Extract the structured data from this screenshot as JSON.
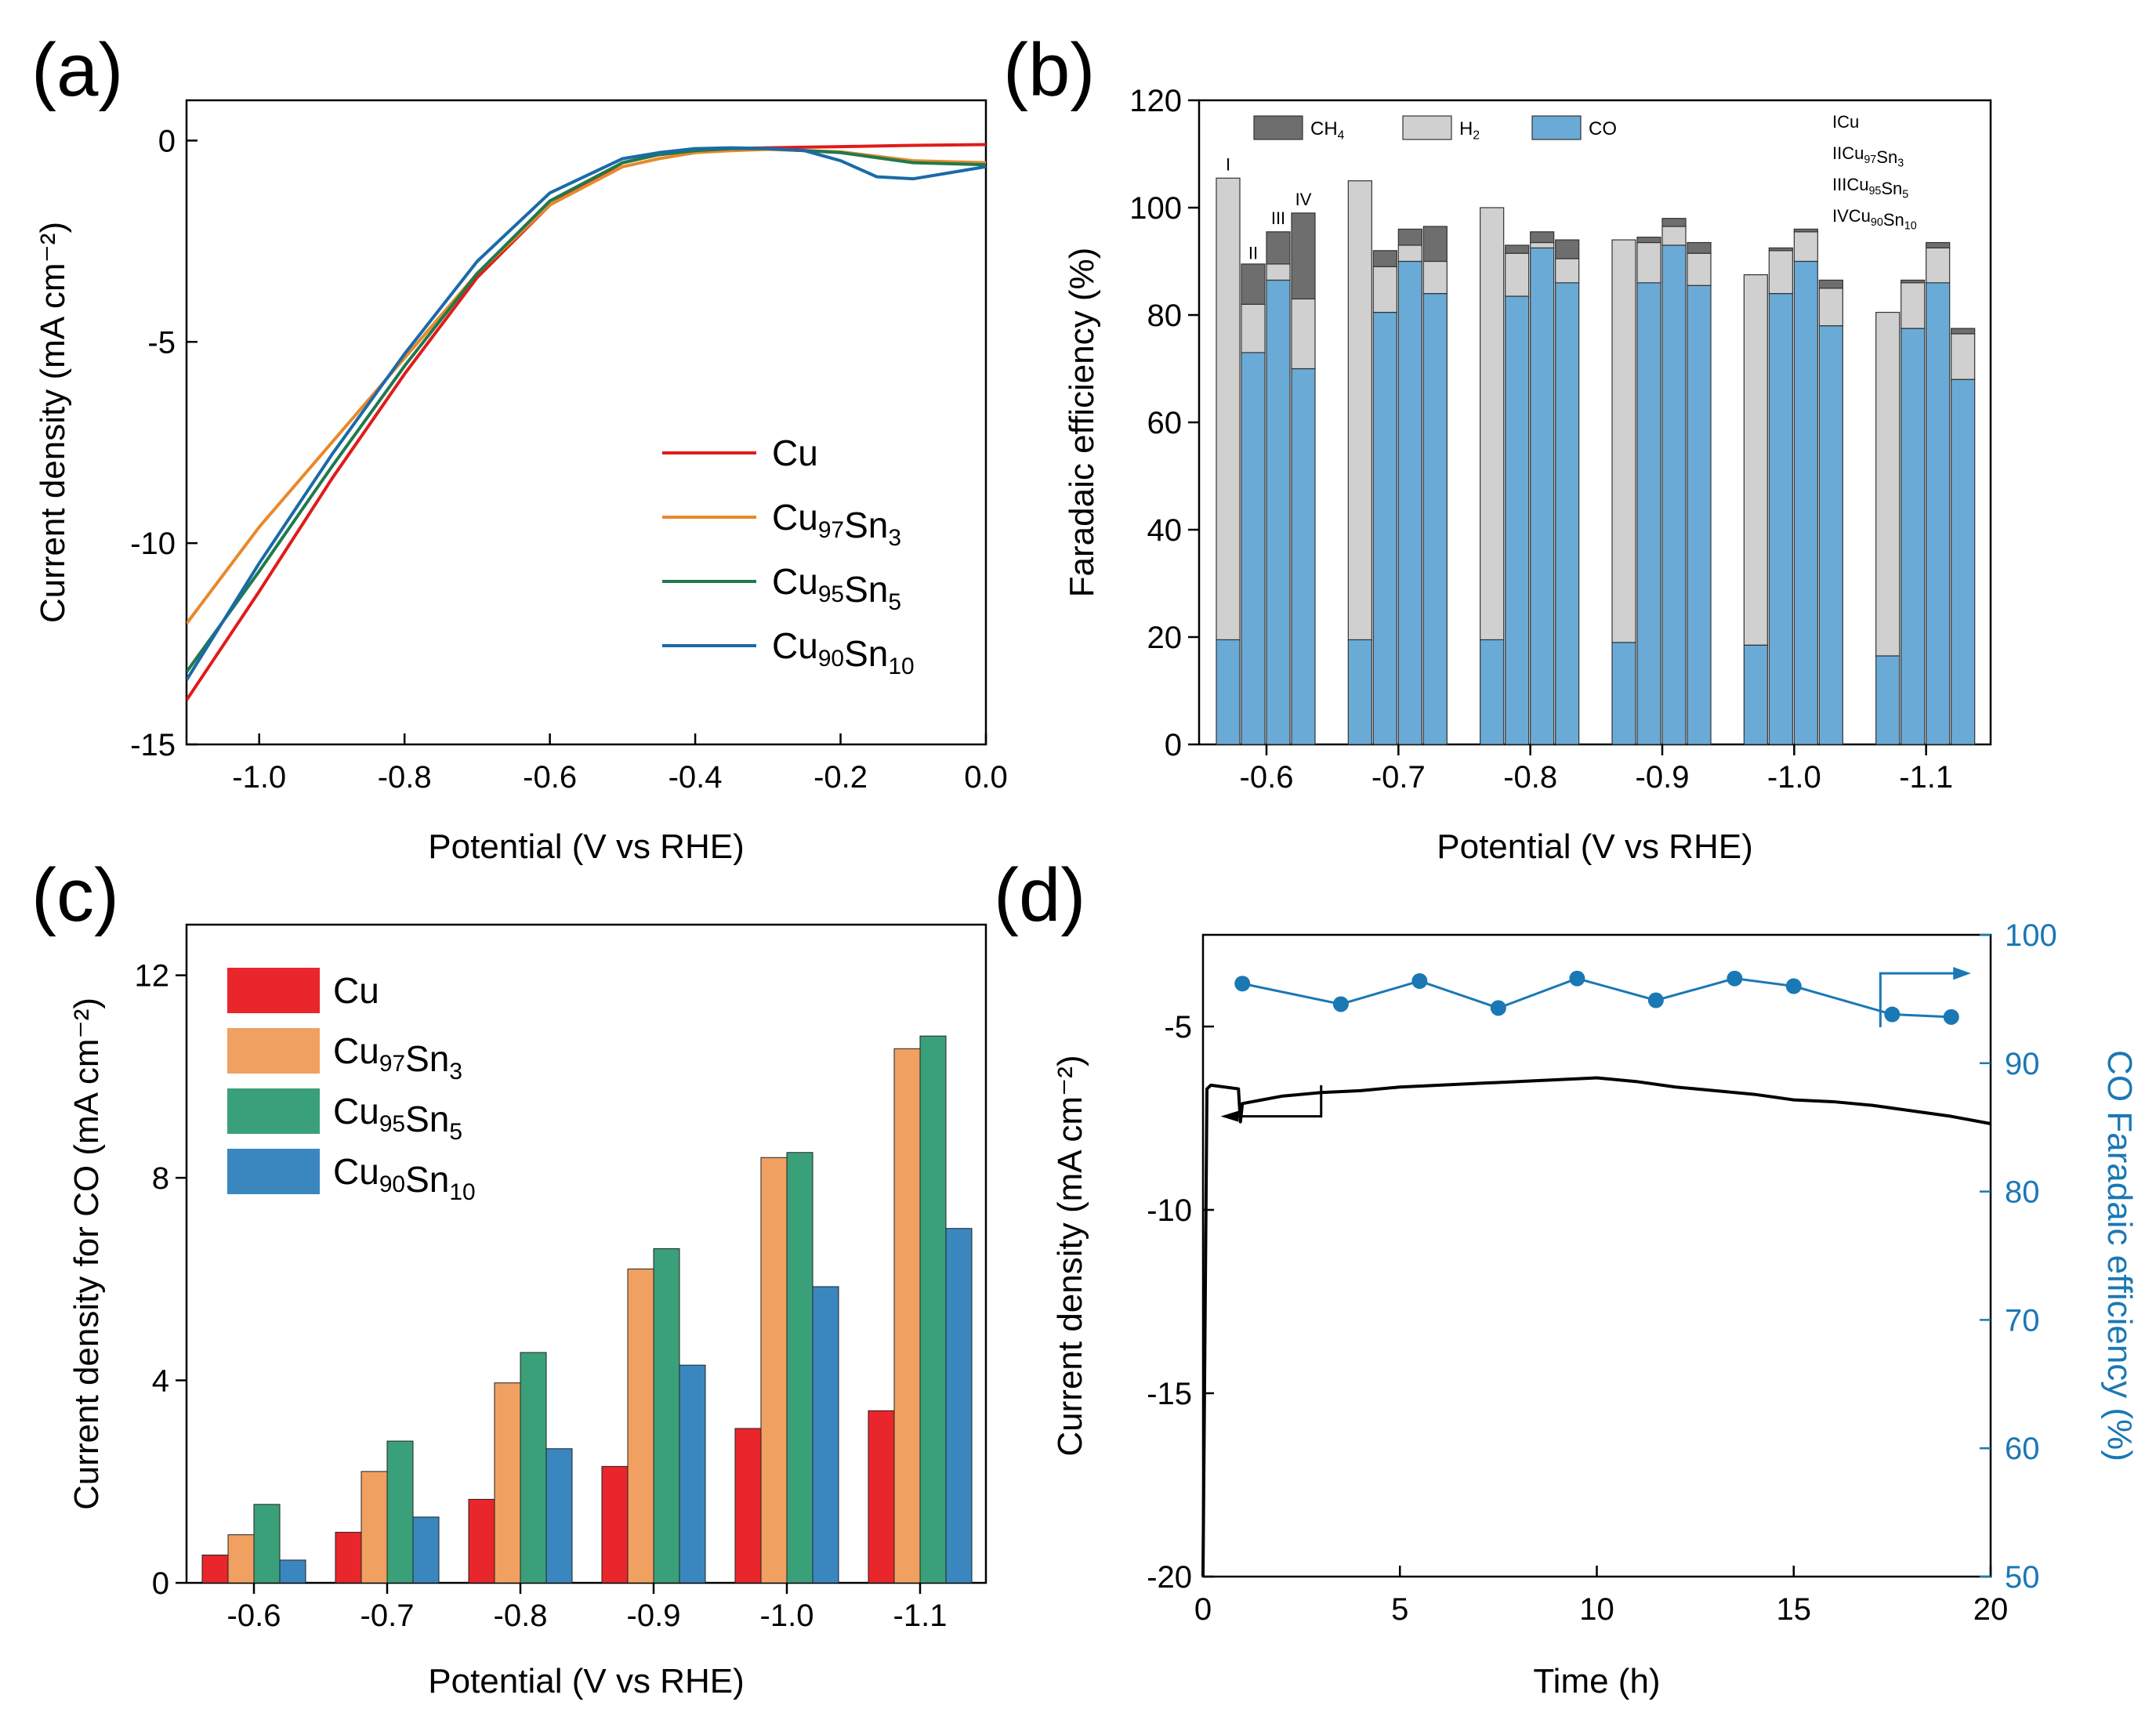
{
  "colors": {
    "cu": "#e8262b",
    "cu97": "#f0a060",
    "cu95": "#3aa07a",
    "cu90": "#3a87c0",
    "ch4": "#6e6e6e",
    "h2": "#d0d0d0",
    "co": "#6aaad6",
    "fe_blue": "#1a78b4",
    "line_cu": "#e01b1b",
    "line_cu97": "#e8892a",
    "line_cu95": "#1f7a4c",
    "line_cu90": "#1a6aa8"
  },
  "panels": {
    "a": {
      "label": "(a)",
      "xlabel": "Potential (V vs RHE)",
      "ylabel": "Current density (mA cm⁻²)"
    },
    "b": {
      "label": "(b)",
      "xlabel": "Potential (V vs RHE)",
      "ylabel": "Faradaic efficiency (%)"
    },
    "c": {
      "label": "(c)",
      "xlabel": "Potential (V vs RHE)",
      "ylabel": "Current density for CO (mA cm⁻²)"
    },
    "d": {
      "label": "(d)",
      "xlabel": "Time (h)",
      "ylabel": "Current density (mA cm⁻²)",
      "y2label": "CO Faradaic efficiency (%)"
    }
  },
  "chart_data": [
    {
      "panel": "a",
      "type": "line",
      "xlabel": "Potential (V vs RHE)",
      "ylabel": "Current density (mA cm-2)",
      "xlim": [
        -1.1,
        0.0
      ],
      "ylim": [
        -15,
        1
      ],
      "xticks": [
        "-1.0",
        "-0.8",
        "-0.6",
        "-0.4",
        "-0.2",
        "0.0"
      ],
      "xtick_values": [
        -1.0,
        -0.8,
        -0.6,
        -0.4,
        -0.2,
        0.0
      ],
      "yticks": [
        "0",
        "-5",
        "-10",
        "-15"
      ],
      "ytick_values": [
        0,
        -5,
        -10,
        -15
      ],
      "legend": [
        "Cu",
        "Cu97Sn3",
        "Cu95Sn5",
        "Cu90Sn10"
      ],
      "series": [
        {
          "name": "Cu",
          "color": "#e01b1b",
          "x": [
            -1.1,
            -1.0,
            -0.9,
            -0.8,
            -0.7,
            -0.6,
            -0.5,
            -0.45,
            -0.4,
            -0.35,
            -0.3,
            -0.2,
            -0.1,
            0.0
          ],
          "y": [
            -13.9,
            -11.2,
            -8.4,
            -5.8,
            -3.4,
            -1.6,
            -0.55,
            -0.35,
            -0.25,
            -0.2,
            -0.18,
            -0.15,
            -0.12,
            -0.1
          ]
        },
        {
          "name": "Cu97Sn3",
          "color": "#e8892a",
          "x": [
            -1.1,
            -1.0,
            -0.9,
            -0.8,
            -0.7,
            -0.6,
            -0.5,
            -0.45,
            -0.4,
            -0.35,
            -0.3,
            -0.2,
            -0.1,
            0.0
          ],
          "y": [
            -12.0,
            -9.6,
            -7.5,
            -5.4,
            -3.3,
            -1.6,
            -0.65,
            -0.45,
            -0.3,
            -0.25,
            -0.22,
            -0.28,
            -0.5,
            -0.55
          ]
        },
        {
          "name": "Cu95Sn5",
          "color": "#1f7a4c",
          "x": [
            -1.1,
            -1.0,
            -0.9,
            -0.8,
            -0.7,
            -0.6,
            -0.5,
            -0.45,
            -0.4,
            -0.35,
            -0.3,
            -0.2,
            -0.1,
            0.0
          ],
          "y": [
            -13.2,
            -10.7,
            -8.1,
            -5.6,
            -3.3,
            -1.5,
            -0.55,
            -0.35,
            -0.25,
            -0.2,
            -0.2,
            -0.3,
            -0.55,
            -0.6
          ]
        },
        {
          "name": "Cu90Sn10",
          "color": "#1a6aa8",
          "x": [
            -1.1,
            -1.0,
            -0.9,
            -0.8,
            -0.7,
            -0.6,
            -0.5,
            -0.45,
            -0.4,
            -0.35,
            -0.3,
            -0.25,
            -0.2,
            -0.15,
            -0.1,
            -0.05,
            0.0
          ],
          "y": [
            -13.4,
            -10.5,
            -7.8,
            -5.3,
            -3.0,
            -1.3,
            -0.45,
            -0.3,
            -0.2,
            -0.18,
            -0.2,
            -0.25,
            -0.5,
            -0.9,
            -0.95,
            -0.8,
            -0.65
          ]
        }
      ]
    },
    {
      "panel": "b",
      "type": "bar",
      "stacked": true,
      "xlabel": "Potential (V vs RHE)",
      "ylabel": "Faradaic efficiency (%)",
      "ylim": [
        0,
        120
      ],
      "yticks": [
        "0",
        "20",
        "40",
        "60",
        "80",
        "100",
        "120"
      ],
      "ytick_values": [
        0,
        20,
        40,
        60,
        80,
        100,
        120
      ],
      "categories": [
        "-0.6",
        "-0.7",
        "-0.8",
        "-0.9",
        "-1.0",
        "-1.1"
      ],
      "samples": [
        "I",
        "II",
        "III",
        "IV"
      ],
      "legend": [
        "CH4",
        "H2",
        "CO"
      ],
      "sample_key": [
        "I:   Cu",
        "II:  Cu97Sn3",
        "III: Cu95Sn5",
        "IV: Cu90Sn10"
      ],
      "series": [
        {
          "name": "CO",
          "values": [
            [
              19.5,
              73,
              86.5,
              70
            ],
            [
              19.5,
              80.5,
              90,
              84
            ],
            [
              19.5,
              83.5,
              92.5,
              86
            ],
            [
              19,
              86,
              93,
              85.5
            ],
            [
              18.5,
              84,
              90,
              78
            ],
            [
              16.5,
              77.5,
              86,
              68
            ]
          ]
        },
        {
          "name": "H2",
          "values": [
            [
              86,
              9,
              3,
              13
            ],
            [
              85.5,
              8.5,
              3,
              6
            ],
            [
              80.5,
              8,
              1,
              4.5
            ],
            [
              75,
              7.5,
              3.5,
              6
            ],
            [
              69,
              8,
              5.5,
              7
            ],
            [
              64,
              8.5,
              6.5,
              8.5
            ]
          ]
        },
        {
          "name": "CH4",
          "values": [
            [
              0,
              7.5,
              6,
              16
            ],
            [
              0,
              3,
              3,
              6.5
            ],
            [
              0,
              1.5,
              2,
              3.5
            ],
            [
              0,
              1,
              1.5,
              2
            ],
            [
              0,
              0.5,
              0.5,
              1.5
            ],
            [
              0,
              0.5,
              1,
              1
            ]
          ]
        }
      ]
    },
    {
      "panel": "c",
      "type": "bar",
      "xlabel": "Potential (V vs RHE)",
      "ylabel": "Current density for CO (mA cm-2)",
      "ylim": [
        0,
        13
      ],
      "yticks": [
        "0",
        "4",
        "8",
        "12"
      ],
      "ytick_values": [
        0,
        4,
        8,
        12
      ],
      "categories": [
        "-0.6",
        "-0.7",
        "-0.8",
        "-0.9",
        "-1.0",
        "-1.1"
      ],
      "legend": [
        "Cu",
        "Cu97Sn3",
        "Cu95Sn5",
        "Cu90Sn10"
      ],
      "series": [
        {
          "name": "Cu",
          "values": [
            0.55,
            1.0,
            1.65,
            2.3,
            3.05,
            3.4
          ]
        },
        {
          "name": "Cu97Sn3",
          "values": [
            0.95,
            2.2,
            3.95,
            6.2,
            8.4,
            10.55
          ]
        },
        {
          "name": "Cu95Sn5",
          "values": [
            1.55,
            2.8,
            4.55,
            6.6,
            8.5,
            10.8
          ]
        },
        {
          "name": "Cu90Sn10",
          "values": [
            0.45,
            1.3,
            2.65,
            4.3,
            5.85,
            7.0
          ]
        }
      ]
    },
    {
      "panel": "d",
      "type": "line",
      "xlabel": "Time (h)",
      "ylabel": "Current density (mA cm-2)",
      "y2label": "CO Faradaic efficiency (%)",
      "xlim": [
        0,
        20
      ],
      "ylim": [
        -20,
        -2.5
      ],
      "y2lim": [
        50,
        100
      ],
      "xticks": [
        "0",
        "5",
        "10",
        "15",
        "20"
      ],
      "xtick_values": [
        0,
        5,
        10,
        15,
        20
      ],
      "yticks": [
        "-5",
        "-10",
        "-15",
        "-20"
      ],
      "ytick_values": [
        -5,
        -10,
        -15,
        -20
      ],
      "y2ticks": [
        "50",
        "60",
        "70",
        "80",
        "90",
        "100"
      ],
      "y2tick_values": [
        50,
        60,
        70,
        80,
        90,
        100
      ],
      "current": {
        "x": [
          0,
          0.1,
          0.2,
          0.9,
          0.95,
          1.0,
          1.5,
          2,
          3,
          4,
          5,
          6,
          7,
          8,
          9,
          10,
          11,
          12,
          13,
          14,
          15,
          16,
          17,
          18,
          19,
          20
        ],
        "y": [
          -20,
          -6.7,
          -6.6,
          -6.7,
          -7.6,
          -7.1,
          -7.0,
          -6.9,
          -6.8,
          -6.75,
          -6.65,
          -6.6,
          -6.55,
          -6.5,
          -6.45,
          -6.4,
          -6.5,
          -6.65,
          -6.75,
          -6.85,
          -7.0,
          -7.05,
          -7.15,
          -7.3,
          -7.45,
          -7.65
        ]
      },
      "fe": {
        "x": [
          1,
          3.5,
          5.5,
          7.5,
          9.5,
          11.5,
          13.5,
          15,
          17.5,
          19
        ],
        "y": [
          96.2,
          94.6,
          96.4,
          94.3,
          96.6,
          94.9,
          96.6,
          96.0,
          93.8,
          93.6
        ]
      }
    }
  ]
}
